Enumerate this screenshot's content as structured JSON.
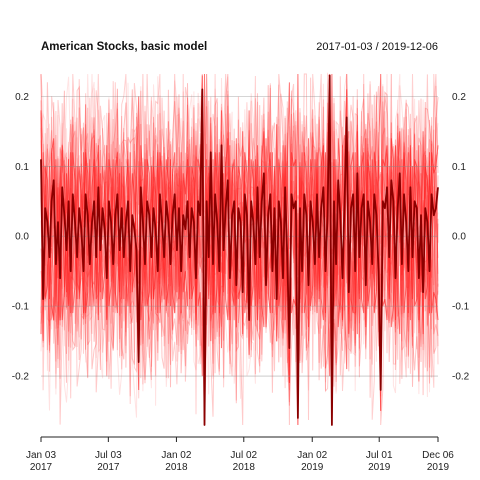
{
  "chart_data": {
    "type": "line",
    "title": "American Stocks, basic model",
    "period_label": "2017-01-03 / 2019-12-06",
    "x_start": "2017-01-03",
    "x_end": "2019-12-06",
    "ylim": [
      -0.27,
      0.232
    ],
    "grid": true,
    "y_ticks": [
      {
        "value": 0.2,
        "label": "0.2"
      },
      {
        "value": 0.1,
        "label": "0.1"
      },
      {
        "value": 0.0,
        "label": "0.0"
      },
      {
        "value": -0.1,
        "label": "-0.1"
      },
      {
        "value": -0.2,
        "label": "-0.2"
      }
    ],
    "x_ticks": [
      {
        "date": "2017-01-03",
        "line1": "Jan 03",
        "line2": "2017"
      },
      {
        "date": "2017-07-03",
        "line1": "Jul 03",
        "line2": "2017"
      },
      {
        "date": "2018-01-02",
        "line1": "Jan 02",
        "line2": "2018"
      },
      {
        "date": "2018-07-02",
        "line1": "Jul 02",
        "line2": "2018"
      },
      {
        "date": "2019-01-02",
        "line1": "Jan 02",
        "line2": "2019"
      },
      {
        "date": "2019-07-01",
        "line1": "Jul 01",
        "line2": "2019"
      },
      {
        "date": "2019-12-06",
        "line1": "Dec 06",
        "line2": "2019"
      }
    ],
    "series": [
      {
        "style": "main",
        "color": "#8b0000",
        "values": [
          0.11,
          -0.09,
          0.04,
          0.02,
          -0.03,
          0.05,
          0.08,
          -0.04,
          0.02,
          -0.06,
          0.07,
          0.03,
          -0.02,
          0.05,
          -0.05,
          0.06,
          0.02,
          -0.03,
          0.04,
          0.01,
          -0.05,
          0.06,
          0.03,
          -0.04,
          0.02,
          0.05,
          -0.03,
          0.07,
          -0.02,
          0.04,
          0.01,
          -0.06,
          0.05,
          0.02,
          -0.04,
          0.03,
          0.06,
          -0.02,
          0.04,
          -0.03,
          0.02,
          0.05,
          -0.05,
          0.03,
          0.01,
          -0.02,
          -0.18,
          0.07,
          0.02,
          -0.04,
          0.05,
          0.03,
          -0.03,
          0.04,
          0.01,
          -0.05,
          0.06,
          0.02,
          -0.03,
          0.05,
          0.02,
          -0.04,
          0.03,
          0.06,
          -0.02,
          0.04,
          -0.05,
          0.03,
          0.01,
          0.05,
          -0.03,
          0.04,
          0.02,
          -0.06,
          0.05,
          0.03,
          0.21,
          -0.27,
          0.05,
          -0.03,
          0.12,
          -0.04,
          0.06,
          0.02,
          -0.05,
          0.13,
          -0.02,
          0.04,
          0.08,
          -0.06,
          0.03,
          0.05,
          -0.07,
          0.04,
          0.02,
          -0.08,
          0.06,
          0.03,
          -0.12,
          0.05,
          0.02,
          -0.04,
          0.07,
          -0.03,
          0.05,
          0.09,
          -0.07,
          0.03,
          0.06,
          -0.05,
          0.04,
          -0.09,
          0.05,
          0.02,
          -0.06,
          0.07,
          -0.03,
          -0.16,
          0.06,
          0.04,
          0.05,
          -0.26,
          0.04,
          -0.05,
          0.06,
          0.03,
          -0.07,
          0.05,
          0.02,
          -0.04,
          0.06,
          -0.03,
          0.04,
          0.07,
          -0.05,
          0.03,
          0.23,
          -0.27,
          0.05,
          -0.04,
          0.08,
          0.03,
          -0.06,
          0.05,
          0.17,
          -0.08,
          0.04,
          0.06,
          -0.05,
          0.09,
          -0.03,
          0.04,
          0.06,
          -0.07,
          0.05,
          0.02,
          -0.04,
          0.06,
          0.03,
          -0.05,
          -0.22,
          0.05,
          0.04,
          0.07,
          -0.03,
          0.08,
          0.05,
          -0.06,
          0.04,
          0.09,
          -0.04,
          0.06,
          0.02,
          -0.05,
          0.07,
          -0.03,
          0.05,
          0.04,
          -0.06,
          0.03,
          -0.08,
          0.04,
          0.02,
          -0.05,
          0.06,
          0.03,
          0.04,
          0.07
        ]
      },
      {
        "style": "band",
        "color": "#ff0000",
        "values": [
          0.18,
          -0.15,
          0.1,
          0.08,
          -0.09,
          0.12,
          0.14,
          -0.1,
          0.07,
          -0.12,
          0.13,
          0.09,
          -0.08,
          0.11,
          -0.11,
          0.12,
          0.08,
          -0.09,
          0.1,
          0.06,
          -0.11,
          0.12,
          0.09,
          -0.1,
          0.07,
          0.11,
          -0.09,
          0.13,
          -0.08,
          0.1,
          0.06,
          -0.12,
          0.11,
          0.08,
          -0.1,
          0.09,
          0.12,
          -0.08,
          0.1,
          -0.09,
          0.07,
          0.11,
          -0.11,
          0.09,
          0.06,
          -0.08,
          -0.22,
          0.13,
          0.08,
          -0.1,
          0.11,
          0.09,
          -0.09,
          0.1,
          0.06,
          -0.11,
          0.12,
          0.08,
          -0.09,
          0.11,
          0.08,
          -0.1,
          0.09,
          0.12,
          -0.08,
          0.1,
          -0.11,
          0.09,
          0.06,
          0.11,
          -0.09,
          0.1,
          0.08,
          -0.12,
          0.11,
          0.09,
          0.23,
          -0.27,
          0.11,
          -0.09,
          0.17,
          -0.1,
          0.12,
          0.08,
          -0.11,
          0.18,
          -0.08,
          0.1,
          0.14,
          -0.12,
          0.09,
          0.11,
          -0.13,
          0.1,
          0.08,
          -0.14,
          0.12,
          0.09,
          -0.17,
          0.11,
          0.08,
          -0.1,
          0.13,
          -0.09,
          0.11,
          0.15,
          -0.13,
          0.09,
          0.12,
          -0.11,
          0.1,
          -0.15,
          0.11,
          0.08,
          -0.12,
          0.13,
          -0.09,
          -0.21,
          0.12,
          0.1,
          0.11,
          -0.27,
          0.1,
          -0.11,
          0.12,
          0.09,
          -0.13,
          0.11,
          0.08,
          -0.1,
          0.12,
          -0.09,
          0.1,
          0.13,
          -0.11,
          0.09,
          0.23,
          -0.27,
          0.11,
          -0.1,
          0.14,
          0.09,
          -0.12,
          0.11,
          0.21,
          -0.14,
          0.1,
          0.12,
          -0.11,
          0.15,
          -0.09,
          0.1,
          0.12,
          -0.13,
          0.11,
          0.08,
          -0.1,
          0.12,
          0.09,
          -0.11,
          -0.25,
          0.11,
          0.1,
          0.13,
          -0.09,
          0.14,
          0.11,
          -0.12,
          0.1,
          0.15,
          -0.1,
          0.12,
          0.08,
          -0.11,
          0.13,
          -0.09,
          0.11,
          0.1,
          -0.12,
          0.09,
          -0.14,
          0.1,
          0.08,
          -0.11,
          0.12,
          0.09,
          0.1,
          0.13
        ]
      },
      {
        "style": "band",
        "color": "#ff0000",
        "values": [
          -0.14,
          0.12,
          -0.09,
          -0.07,
          0.1,
          -0.1,
          -0.12,
          0.11,
          -0.06,
          0.1,
          -0.12,
          -0.08,
          0.09,
          -0.1,
          0.12,
          -0.11,
          -0.07,
          0.1,
          -0.09,
          -0.05,
          0.12,
          -0.11,
          -0.08,
          0.11,
          -0.06,
          -0.1,
          0.1,
          -0.12,
          0.09,
          -0.09,
          -0.05,
          0.13,
          -0.1,
          -0.07,
          0.11,
          -0.08,
          -0.11,
          0.09,
          -0.09,
          0.1,
          -0.06,
          -0.1,
          0.12,
          -0.08,
          -0.05,
          0.09,
          0.2,
          -0.12,
          -0.07,
          0.11,
          -0.1,
          -0.08,
          0.1,
          -0.09,
          -0.05,
          0.12,
          -0.11,
          -0.07,
          0.1,
          -0.1,
          -0.07,
          0.11,
          -0.08,
          -0.11,
          0.09,
          -0.09,
          0.12,
          -0.08,
          -0.05,
          -0.1,
          0.1,
          -0.09,
          -0.07,
          0.13,
          -0.1,
          -0.08,
          -0.2,
          0.25,
          -0.1,
          0.1,
          -0.15,
          0.11,
          -0.11,
          -0.07,
          0.12,
          -0.16,
          0.09,
          -0.09,
          -0.12,
          0.13,
          -0.08,
          -0.1,
          0.14,
          -0.09,
          -0.07,
          0.15,
          -0.11,
          -0.08,
          0.18,
          -0.1,
          -0.07,
          0.11,
          -0.12,
          0.1,
          -0.1,
          -0.13,
          0.14,
          -0.08,
          -0.11,
          0.12,
          -0.09,
          0.16,
          -0.1,
          -0.07,
          0.13,
          -0.12,
          0.1,
          0.22,
          -0.11,
          -0.09,
          -0.1,
          0.25,
          -0.09,
          0.12,
          -0.11,
          -0.08,
          0.14,
          -0.1,
          -0.07,
          0.11,
          -0.11,
          0.1,
          -0.09,
          -0.12,
          0.12,
          -0.08,
          -0.2,
          0.25,
          -0.1,
          0.11,
          -0.13,
          -0.08,
          0.13,
          -0.1,
          -0.19,
          0.15,
          -0.09,
          -0.11,
          0.12,
          -0.14,
          0.1,
          -0.09,
          -0.11,
          0.14,
          -0.1,
          -0.07,
          0.11,
          -0.11,
          -0.08,
          0.12,
          0.24,
          -0.1,
          -0.09,
          -0.12,
          0.1,
          -0.13,
          -0.1,
          0.13,
          -0.09,
          -0.14,
          0.11,
          -0.11,
          -0.07,
          0.12,
          -0.12,
          0.1,
          -0.1,
          -0.09,
          0.13,
          -0.08,
          0.15,
          -0.09,
          -0.07,
          0.12,
          -0.11,
          -0.08,
          -0.09,
          -0.12
        ]
      }
    ]
  }
}
